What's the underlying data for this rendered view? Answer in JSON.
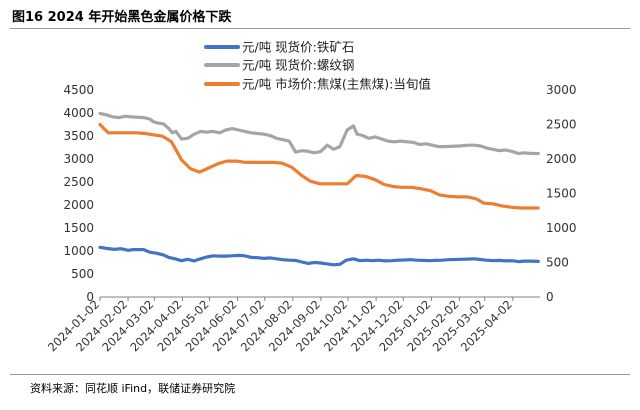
{
  "header": {
    "title": "图16 2024 年开始黑色金属价格下跌"
  },
  "footer": {
    "source": "资料来源：同花顺 iFind，联储证券研究院"
  },
  "chart_data": {
    "type": "line",
    "x_tick_labels": [
      "2024-01-02",
      "2024-02-02",
      "2024-03-02",
      "2024-04-02",
      "2024-05-02",
      "2024-06-02",
      "2024-07-02",
      "2024-08-02",
      "2024-09-02",
      "2024-10-02",
      "2024-11-02",
      "2024-12-02",
      "2025-01-02",
      "2025-02-02",
      "2025-03-02",
      "2025-04-02"
    ],
    "x_range": [
      "2024-01-02",
      "2025-05-02"
    ],
    "y_left": {
      "range": [
        0,
        4500
      ],
      "ticks": [
        0,
        500,
        1000,
        1500,
        2000,
        2500,
        3000,
        3500,
        4000,
        4500
      ]
    },
    "y_right": {
      "range": [
        0,
        3000
      ],
      "ticks": [
        0,
        500,
        1000,
        1500,
        2000,
        2500,
        3000
      ]
    },
    "legend_position": "top",
    "series": [
      {
        "name": "元/吨 现货价:铁矿石",
        "axis": "left",
        "color": "#4472C4",
        "points": [
          [
            "2024-01-02",
            1080
          ],
          [
            "2024-01-10",
            1055
          ],
          [
            "2024-01-18",
            1035
          ],
          [
            "2024-01-25",
            1050
          ],
          [
            "2024-02-02",
            1015
          ],
          [
            "2024-02-08",
            1030
          ],
          [
            "2024-02-19",
            1030
          ],
          [
            "2024-02-26",
            975
          ],
          [
            "2024-03-05",
            950
          ],
          [
            "2024-03-12",
            915
          ],
          [
            "2024-03-18",
            860
          ],
          [
            "2024-03-25",
            830
          ],
          [
            "2024-04-01",
            790
          ],
          [
            "2024-04-08",
            820
          ],
          [
            "2024-04-15",
            785
          ],
          [
            "2024-04-22",
            830
          ],
          [
            "2024-04-29",
            870
          ],
          [
            "2024-05-06",
            895
          ],
          [
            "2024-05-13",
            890
          ],
          [
            "2024-05-20",
            890
          ],
          [
            "2024-05-27",
            895
          ],
          [
            "2024-06-03",
            905
          ],
          [
            "2024-06-10",
            895
          ],
          [
            "2024-06-17",
            860
          ],
          [
            "2024-06-24",
            855
          ],
          [
            "2024-07-01",
            840
          ],
          [
            "2024-07-08",
            850
          ],
          [
            "2024-07-15",
            830
          ],
          [
            "2024-07-22",
            810
          ],
          [
            "2024-07-29",
            800
          ],
          [
            "2024-08-05",
            795
          ],
          [
            "2024-08-12",
            760
          ],
          [
            "2024-08-19",
            730
          ],
          [
            "2024-08-26",
            750
          ],
          [
            "2024-09-02",
            740
          ],
          [
            "2024-09-09",
            720
          ],
          [
            "2024-09-16",
            700
          ],
          [
            "2024-09-23",
            710
          ],
          [
            "2024-09-30",
            800
          ],
          [
            "2024-10-08",
            830
          ],
          [
            "2024-10-15",
            790
          ],
          [
            "2024-10-22",
            800
          ],
          [
            "2024-10-29",
            790
          ],
          [
            "2024-11-05",
            800
          ],
          [
            "2024-11-12",
            785
          ],
          [
            "2024-11-19",
            790
          ],
          [
            "2024-11-26",
            800
          ],
          [
            "2024-12-03",
            805
          ],
          [
            "2024-12-10",
            810
          ],
          [
            "2024-12-17",
            800
          ],
          [
            "2024-12-24",
            795
          ],
          [
            "2024-12-31",
            790
          ],
          [
            "2025-01-07",
            795
          ],
          [
            "2025-01-14",
            800
          ],
          [
            "2025-01-21",
            810
          ],
          [
            "2025-02-04",
            820
          ],
          [
            "2025-02-11",
            825
          ],
          [
            "2025-02-18",
            830
          ],
          [
            "2025-02-25",
            815
          ],
          [
            "2025-03-04",
            800
          ],
          [
            "2025-03-11",
            790
          ],
          [
            "2025-03-18",
            795
          ],
          [
            "2025-03-25",
            785
          ],
          [
            "2025-04-01",
            790
          ],
          [
            "2025-04-08",
            770
          ],
          [
            "2025-04-15",
            780
          ],
          [
            "2025-04-22",
            780
          ],
          [
            "2025-04-30",
            775
          ]
        ]
      },
      {
        "name": "元/吨 现货价:螺纹钢",
        "axis": "right",
        "color": "#A5A5A5",
        "points": [
          [
            "2024-01-02",
            2660
          ],
          [
            "2024-01-09",
            2640
          ],
          [
            "2024-01-16",
            2610
          ],
          [
            "2024-01-23",
            2600
          ],
          [
            "2024-01-30",
            2620
          ],
          [
            "2024-02-06",
            2610
          ],
          [
            "2024-02-19",
            2600
          ],
          [
            "2024-02-26",
            2580
          ],
          [
            "2024-03-01",
            2540
          ],
          [
            "2024-03-06",
            2520
          ],
          [
            "2024-03-12",
            2510
          ],
          [
            "2024-03-18",
            2440
          ],
          [
            "2024-03-22",
            2380
          ],
          [
            "2024-03-26",
            2400
          ],
          [
            "2024-04-01",
            2290
          ],
          [
            "2024-04-08",
            2300
          ],
          [
            "2024-04-15",
            2360
          ],
          [
            "2024-04-22",
            2400
          ],
          [
            "2024-04-29",
            2390
          ],
          [
            "2024-05-06",
            2400
          ],
          [
            "2024-05-13",
            2380
          ],
          [
            "2024-05-20",
            2420
          ],
          [
            "2024-05-27",
            2440
          ],
          [
            "2024-06-03",
            2420
          ],
          [
            "2024-06-10",
            2400
          ],
          [
            "2024-06-17",
            2380
          ],
          [
            "2024-06-24",
            2370
          ],
          [
            "2024-07-01",
            2360
          ],
          [
            "2024-07-08",
            2340
          ],
          [
            "2024-07-15",
            2300
          ],
          [
            "2024-07-22",
            2280
          ],
          [
            "2024-07-29",
            2260
          ],
          [
            "2024-08-05",
            2100
          ],
          [
            "2024-08-12",
            2120
          ],
          [
            "2024-08-19",
            2110
          ],
          [
            "2024-08-26",
            2090
          ],
          [
            "2024-09-02",
            2110
          ],
          [
            "2024-09-09",
            2200
          ],
          [
            "2024-09-16",
            2140
          ],
          [
            "2024-09-23",
            2180
          ],
          [
            "2024-09-27",
            2300
          ],
          [
            "2024-10-01",
            2420
          ],
          [
            "2024-10-08",
            2480
          ],
          [
            "2024-10-12",
            2360
          ],
          [
            "2024-10-18",
            2340
          ],
          [
            "2024-10-25",
            2300
          ],
          [
            "2024-11-01",
            2320
          ],
          [
            "2024-11-08",
            2290
          ],
          [
            "2024-11-15",
            2260
          ],
          [
            "2024-11-22",
            2250
          ],
          [
            "2024-11-29",
            2260
          ],
          [
            "2024-12-06",
            2250
          ],
          [
            "2024-12-13",
            2240
          ],
          [
            "2024-12-20",
            2210
          ],
          [
            "2024-12-27",
            2220
          ],
          [
            "2025-01-03",
            2200
          ],
          [
            "2025-01-10",
            2180
          ],
          [
            "2025-01-17",
            2180
          ],
          [
            "2025-02-04",
            2190
          ],
          [
            "2025-02-11",
            2200
          ],
          [
            "2025-02-18",
            2200
          ],
          [
            "2025-02-25",
            2190
          ],
          [
            "2025-03-04",
            2160
          ],
          [
            "2025-03-11",
            2140
          ],
          [
            "2025-03-18",
            2120
          ],
          [
            "2025-03-25",
            2130
          ],
          [
            "2025-04-01",
            2110
          ],
          [
            "2025-04-08",
            2080
          ],
          [
            "2025-04-15",
            2090
          ],
          [
            "2025-04-22",
            2080
          ],
          [
            "2025-04-30",
            2080
          ]
        ]
      },
      {
        "name": "元/吨 市场价:焦煤(主焦煤):当旬值",
        "axis": "right",
        "color": "#ED7D31",
        "points": [
          [
            "2024-01-02",
            2500
          ],
          [
            "2024-01-11",
            2380
          ],
          [
            "2024-01-21",
            2380
          ],
          [
            "2024-02-01",
            2380
          ],
          [
            "2024-02-11",
            2380
          ],
          [
            "2024-02-21",
            2370
          ],
          [
            "2024-03-01",
            2350
          ],
          [
            "2024-03-11",
            2330
          ],
          [
            "2024-03-21",
            2250
          ],
          [
            "2024-04-01",
            1990
          ],
          [
            "2024-04-11",
            1860
          ],
          [
            "2024-04-21",
            1810
          ],
          [
            "2024-05-01",
            1870
          ],
          [
            "2024-05-11",
            1930
          ],
          [
            "2024-05-21",
            1970
          ],
          [
            "2024-06-01",
            1970
          ],
          [
            "2024-06-11",
            1950
          ],
          [
            "2024-06-21",
            1950
          ],
          [
            "2024-07-01",
            1950
          ],
          [
            "2024-07-11",
            1950
          ],
          [
            "2024-07-21",
            1940
          ],
          [
            "2024-08-01",
            1880
          ],
          [
            "2024-08-11",
            1770
          ],
          [
            "2024-08-21",
            1680
          ],
          [
            "2024-09-01",
            1640
          ],
          [
            "2024-09-11",
            1640
          ],
          [
            "2024-09-21",
            1640
          ],
          [
            "2024-10-01",
            1640
          ],
          [
            "2024-10-11",
            1760
          ],
          [
            "2024-10-21",
            1750
          ],
          [
            "2024-11-01",
            1700
          ],
          [
            "2024-11-11",
            1630
          ],
          [
            "2024-11-21",
            1600
          ],
          [
            "2024-12-01",
            1590
          ],
          [
            "2024-12-11",
            1590
          ],
          [
            "2024-12-21",
            1570
          ],
          [
            "2025-01-01",
            1540
          ],
          [
            "2025-01-11",
            1480
          ],
          [
            "2025-01-21",
            1460
          ],
          [
            "2025-02-01",
            1450
          ],
          [
            "2025-02-11",
            1450
          ],
          [
            "2025-02-21",
            1420
          ],
          [
            "2025-03-01",
            1360
          ],
          [
            "2025-03-11",
            1350
          ],
          [
            "2025-03-21",
            1320
          ],
          [
            "2025-04-01",
            1300
          ],
          [
            "2025-04-11",
            1290
          ],
          [
            "2025-04-21",
            1290
          ],
          [
            "2025-04-30",
            1290
          ]
        ]
      }
    ]
  }
}
